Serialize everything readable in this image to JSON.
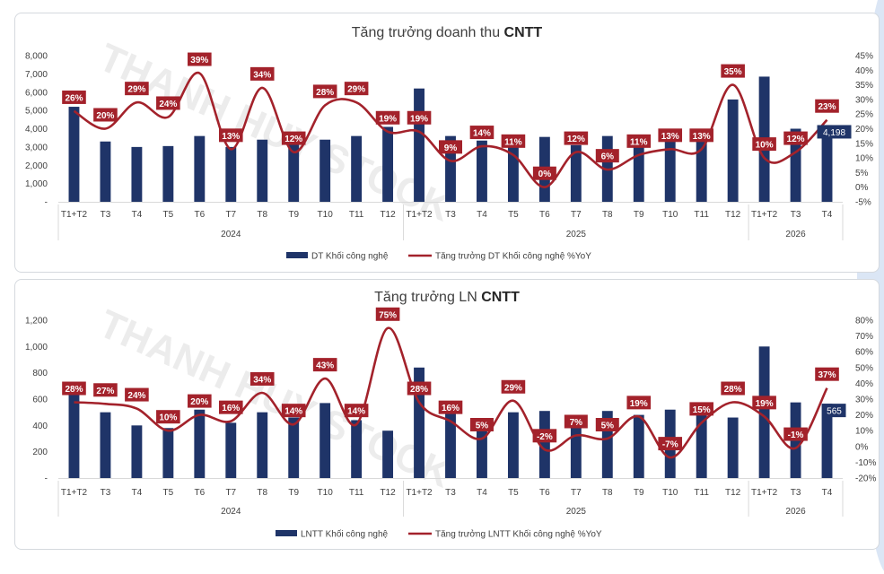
{
  "chart_data": [
    {
      "type": "bar",
      "title_prefix": "Tăng trưởng doanh thu ",
      "title_bold": "CNTT",
      "categories": [
        "T1+T2",
        "T3",
        "T4",
        "T5",
        "T6",
        "T7",
        "T8",
        "T9",
        "T10",
        "T11",
        "T12",
        "T1+T2",
        "T3",
        "T4",
        "T5",
        "T6",
        "T7",
        "T8",
        "T9",
        "T10",
        "T11",
        "T12",
        "T1+T2",
        "T3",
        "T4"
      ],
      "years": [
        {
          "label": "2024",
          "start": 0,
          "end": 10
        },
        {
          "label": "2025",
          "start": 11,
          "end": 21
        },
        {
          "label": "2026",
          "start": 22,
          "end": 24
        }
      ],
      "left_axis": {
        "min": 0,
        "max": 8000,
        "ticks": [
          "-",
          "1,000",
          "2,000",
          "3,000",
          "4,000",
          "5,000",
          "6,000",
          "7,000",
          "8,000"
        ]
      },
      "right_axis": {
        "min": -5,
        "max": 45,
        "ticks": [
          "-5%",
          "0%",
          "5%",
          "10%",
          "15%",
          "20%",
          "25%",
          "30%",
          "35%",
          "40%",
          "45%"
        ]
      },
      "series": [
        {
          "name": "DT Khối công nghệ",
          "kind": "bar",
          "values": [
            5200,
            3300,
            3000,
            3050,
            3600,
            3000,
            3400,
            3150,
            3400,
            3600,
            4100,
            6200,
            3600,
            3350,
            3150,
            3550,
            3100,
            3600,
            3400,
            3600,
            3800,
            5600,
            6850,
            4000,
            4198
          ],
          "labels": {
            "24": "4,198"
          }
        },
        {
          "name": "Tăng trưởng DT Khối công nghệ %YoY",
          "kind": "line",
          "values": [
            26,
            20,
            29,
            24,
            39,
            13,
            34,
            12,
            28,
            29,
            19,
            19,
            9,
            14,
            11,
            0,
            12,
            6,
            11,
            13,
            13,
            35,
            10,
            12,
            23
          ],
          "labels": [
            "26%",
            "20%",
            "29%",
            "24%",
            "39%",
            "13%",
            "34%",
            "12%",
            "28%",
            "29%",
            "19%",
            "19%",
            "9%",
            "14%",
            "11%",
            "0%",
            "12%",
            "6%",
            "11%",
            "13%",
            "13%",
            "35%",
            "10%",
            "12%",
            "23%"
          ]
        }
      ],
      "colors": {
        "bar": "#1f3468",
        "line": "#a3222b"
      },
      "watermark": "THANH HUY STOCK"
    },
    {
      "type": "bar",
      "title_prefix": "Tăng trưởng LN ",
      "title_bold": "CNTT",
      "categories": [
        "T1+T2",
        "T3",
        "T4",
        "T5",
        "T6",
        "T7",
        "T8",
        "T9",
        "T10",
        "T11",
        "T12",
        "T1+T2",
        "T3",
        "T4",
        "T5",
        "T6",
        "T7",
        "T8",
        "T9",
        "T10",
        "T11",
        "T12",
        "T1+T2",
        "T3",
        "T4"
      ],
      "years": [
        {
          "label": "2024",
          "start": 0,
          "end": 10
        },
        {
          "label": "2025",
          "start": 11,
          "end": 21
        },
        {
          "label": "2026",
          "start": 22,
          "end": 24
        }
      ],
      "left_axis": {
        "min": 0,
        "max": 1200,
        "ticks": [
          "-",
          "200",
          "400",
          "600",
          "800",
          "1,000",
          "1,200"
        ]
      },
      "right_axis": {
        "min": -20,
        "max": 80,
        "ticks": [
          "-20%",
          "-10%",
          "0%",
          "10%",
          "20%",
          "30%",
          "40%",
          "50%",
          "60%",
          "70%",
          "80%"
        ]
      },
      "series": [
        {
          "name": "LNTT Khối công nghệ",
          "kind": "bar",
          "values": [
            640,
            500,
            400,
            380,
            520,
            420,
            500,
            460,
            570,
            440,
            360,
            840,
            500,
            410,
            500,
            510,
            420,
            510,
            480,
            520,
            490,
            460,
            1000,
            575,
            565
          ],
          "labels": {
            "24": "565"
          }
        },
        {
          "name": "Tăng trưởng LNTT Khối công nghệ %YoY",
          "kind": "line",
          "values": [
            28,
            27,
            24,
            10,
            20,
            16,
            34,
            14,
            43,
            14,
            75,
            28,
            16,
            5,
            29,
            -2,
            7,
            5,
            19,
            -7,
            15,
            28,
            19,
            -1,
            37
          ],
          "labels": [
            "28%",
            "27%",
            "24%",
            "10%",
            "20%",
            "16%",
            "34%",
            "14%",
            "43%",
            "14%",
            "75%",
            "28%",
            "16%",
            "5%",
            "29%",
            "-2%",
            "7%",
            "5%",
            "19%",
            "-7%",
            "15%",
            "28%",
            "19%",
            "-1%",
            "37%"
          ]
        }
      ],
      "colors": {
        "bar": "#1f3468",
        "line": "#a3222b"
      },
      "watermark": "THANH HUY STOCK"
    }
  ]
}
